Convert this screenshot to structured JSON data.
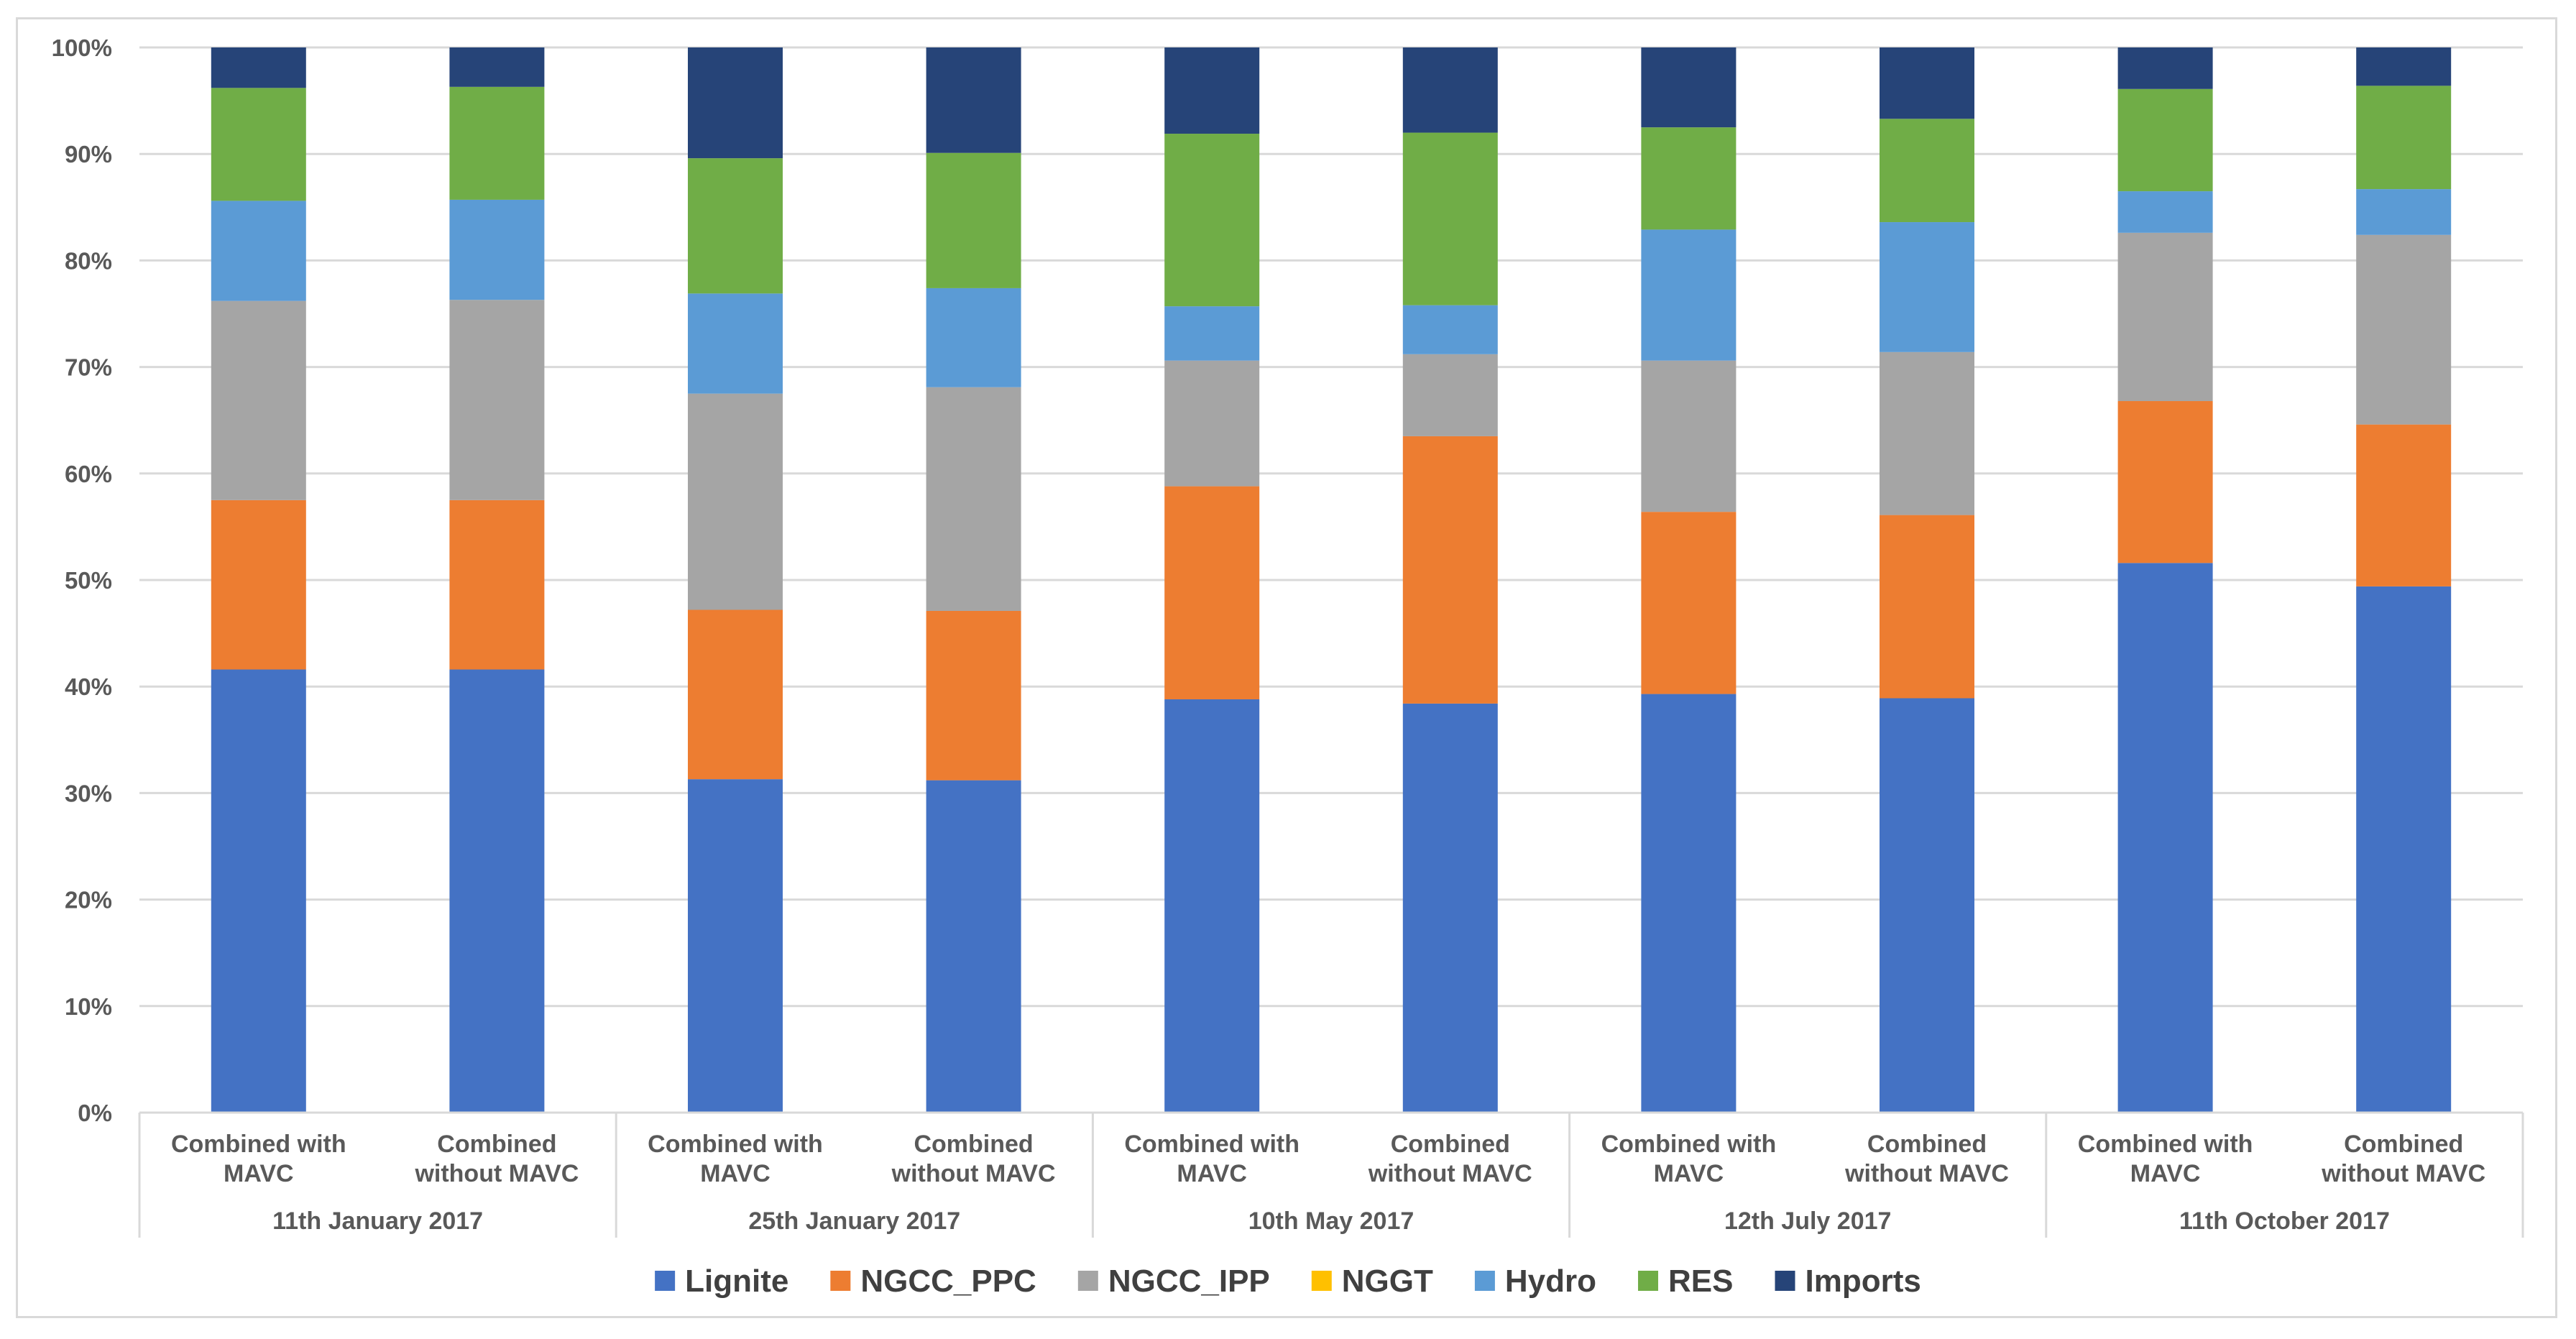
{
  "chart_data": {
    "type": "bar",
    "stacked": true,
    "percent": true,
    "title": "",
    "xlabel": "",
    "ylabel": "",
    "ylim": [
      0,
      100
    ],
    "yticks": [
      "0%",
      "10%",
      "20%",
      "30%",
      "40%",
      "50%",
      "60%",
      "70%",
      "80%",
      "90%",
      "100%"
    ],
    "groups": [
      {
        "label": "11th January 2017",
        "categories": [
          "Combined with\nMAVC",
          "Combined\nwithout MAVC"
        ]
      },
      {
        "label": "25th January 2017",
        "categories": [
          "Combined with\nMAVC",
          "Combined\nwithout MAVC"
        ]
      },
      {
        "label": "10th May 2017",
        "categories": [
          "Combined with\nMAVC",
          "Combined\nwithout MAVC"
        ]
      },
      {
        "label": "12th July 2017",
        "categories": [
          "Combined with\nMAVC",
          "Combined\nwithout MAVC"
        ]
      },
      {
        "label": "11th October 2017",
        "categories": [
          "Combined with\nMAVC",
          "Combined\nwithout MAVC"
        ]
      }
    ],
    "series": [
      {
        "name": "Lignite",
        "color": "#4472C4",
        "values": [
          41.6,
          41.6,
          31.3,
          31.2,
          38.8,
          38.4,
          39.3,
          38.9,
          51.6,
          49.4
        ]
      },
      {
        "name": "NGCC_PPC",
        "color": "#ED7D31",
        "values": [
          15.9,
          15.9,
          15.9,
          15.9,
          20.0,
          25.1,
          17.1,
          17.2,
          15.2,
          15.2
        ]
      },
      {
        "name": "NGCC_IPP",
        "color": "#A5A5A5",
        "values": [
          18.7,
          18.8,
          20.3,
          21.0,
          11.8,
          7.7,
          14.2,
          15.3,
          15.8,
          17.8
        ]
      },
      {
        "name": "NGGT",
        "color": "#FFC000",
        "values": [
          0,
          0,
          0,
          0,
          0,
          0,
          0,
          0,
          0,
          0
        ]
      },
      {
        "name": "Hydro",
        "color": "#5B9BD5",
        "values": [
          9.4,
          9.4,
          9.4,
          9.3,
          5.1,
          4.6,
          12.3,
          12.2,
          3.9,
          4.3
        ]
      },
      {
        "name": "RES",
        "color": "#70AD47",
        "values": [
          10.6,
          10.6,
          12.7,
          12.7,
          16.2,
          16.2,
          9.6,
          9.7,
          9.6,
          9.7
        ]
      },
      {
        "name": "Imports",
        "color": "#264478",
        "values": [
          3.8,
          3.7,
          10.4,
          9.9,
          8.1,
          8.0,
          7.5,
          6.7,
          3.9,
          3.6
        ]
      }
    ],
    "legend_position": "bottom",
    "grid": true
  }
}
